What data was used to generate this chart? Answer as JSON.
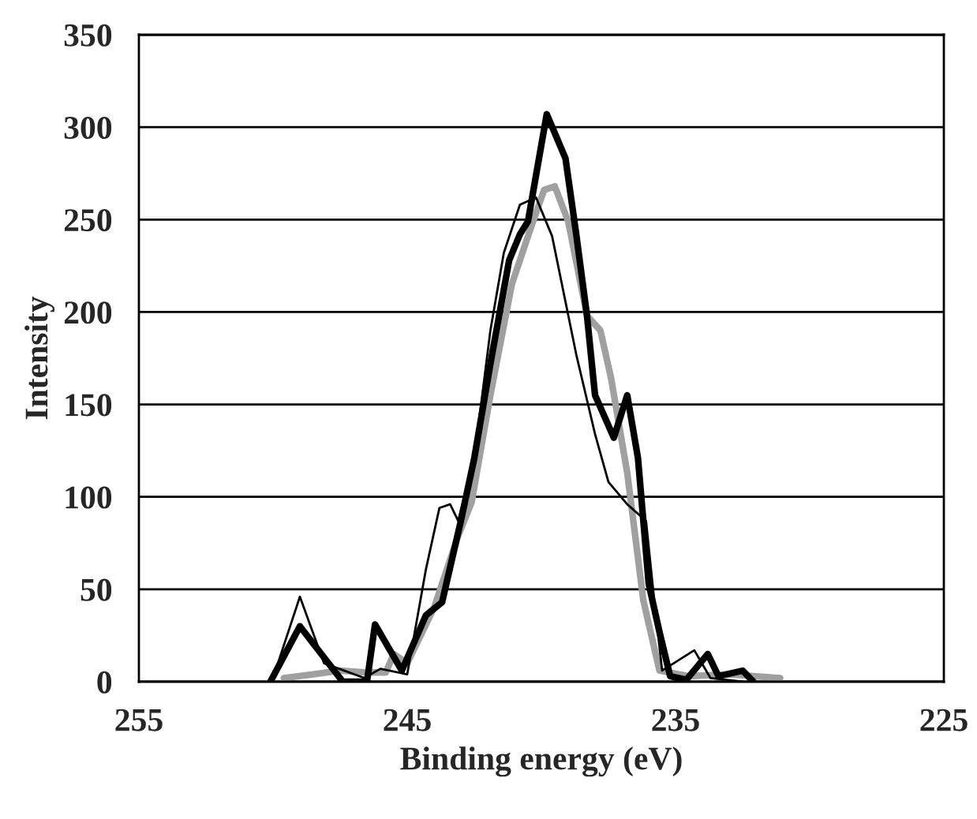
{
  "chart_data": {
    "type": "line",
    "xlabel": "Binding energy (eV)",
    "ylabel": "Intensity",
    "xlim": [
      255,
      225
    ],
    "xticks": [
      255,
      245,
      235,
      225
    ],
    "ylim": [
      0,
      350
    ],
    "yticks": [
      0,
      50,
      100,
      150,
      200,
      250,
      300,
      350
    ],
    "grid": "y",
    "legend": false,
    "marker": "none",
    "line_style": "solid",
    "series": [
      {
        "color": "#a0a0a0",
        "x": [
          249.6,
          248.5,
          247.5,
          246.5,
          245.8,
          245.5,
          245.0,
          244.0,
          243.1,
          242.6,
          241.9,
          241.1,
          240.5,
          239.9,
          239.5,
          239.0,
          238.3,
          237.8,
          237.4,
          236.8,
          236.2,
          235.6,
          234.5,
          233.0,
          231.1
        ],
        "values": [
          2,
          4,
          6,
          5,
          5,
          15,
          10,
          40,
          79,
          97,
          155,
          215,
          241,
          266,
          268,
          249,
          198,
          190,
          164,
          113,
          44,
          6,
          3,
          4,
          2
        ]
      },
      {
        "color": "#000000",
        "x": [
          250.0,
          249.0,
          248.1,
          246.6,
          246.0,
          245.0,
          244.3,
          243.8,
          243.4,
          243.1,
          242.5,
          241.9,
          241.4,
          240.8,
          240.2,
          239.6,
          238.7,
          238.0,
          237.5,
          236.8,
          236.1,
          235.8,
          235.5,
          234.3,
          233.7,
          232.5
        ],
        "values": [
          2,
          46,
          10,
          2,
          7,
          4,
          61,
          94,
          96,
          87,
          121,
          190,
          232,
          258,
          262,
          241,
          177,
          134,
          108,
          96,
          87,
          45,
          6,
          17,
          2,
          0
        ]
      },
      {
        "color": "#000000",
        "x": [
          250.1,
          249.0,
          247.4,
          246.5,
          246.2,
          245.2,
          244.3,
          243.7,
          243.0,
          242.5,
          241.9,
          241.2,
          240.8,
          240.5,
          239.8,
          239.1,
          238.7,
          238.3,
          238.0,
          237.3,
          236.8,
          236.4,
          236.0,
          235.6,
          235.2,
          234.6,
          233.8,
          233.4,
          232.5,
          232.1
        ],
        "values": [
          0,
          30,
          0,
          0,
          31,
          6,
          36,
          43,
          87,
          121,
          172,
          228,
          242,
          249,
          307,
          283,
          242,
          198,
          155,
          132,
          155,
          121,
          53,
          27,
          3,
          1,
          15,
          3,
          6,
          0
        ]
      }
    ]
  }
}
